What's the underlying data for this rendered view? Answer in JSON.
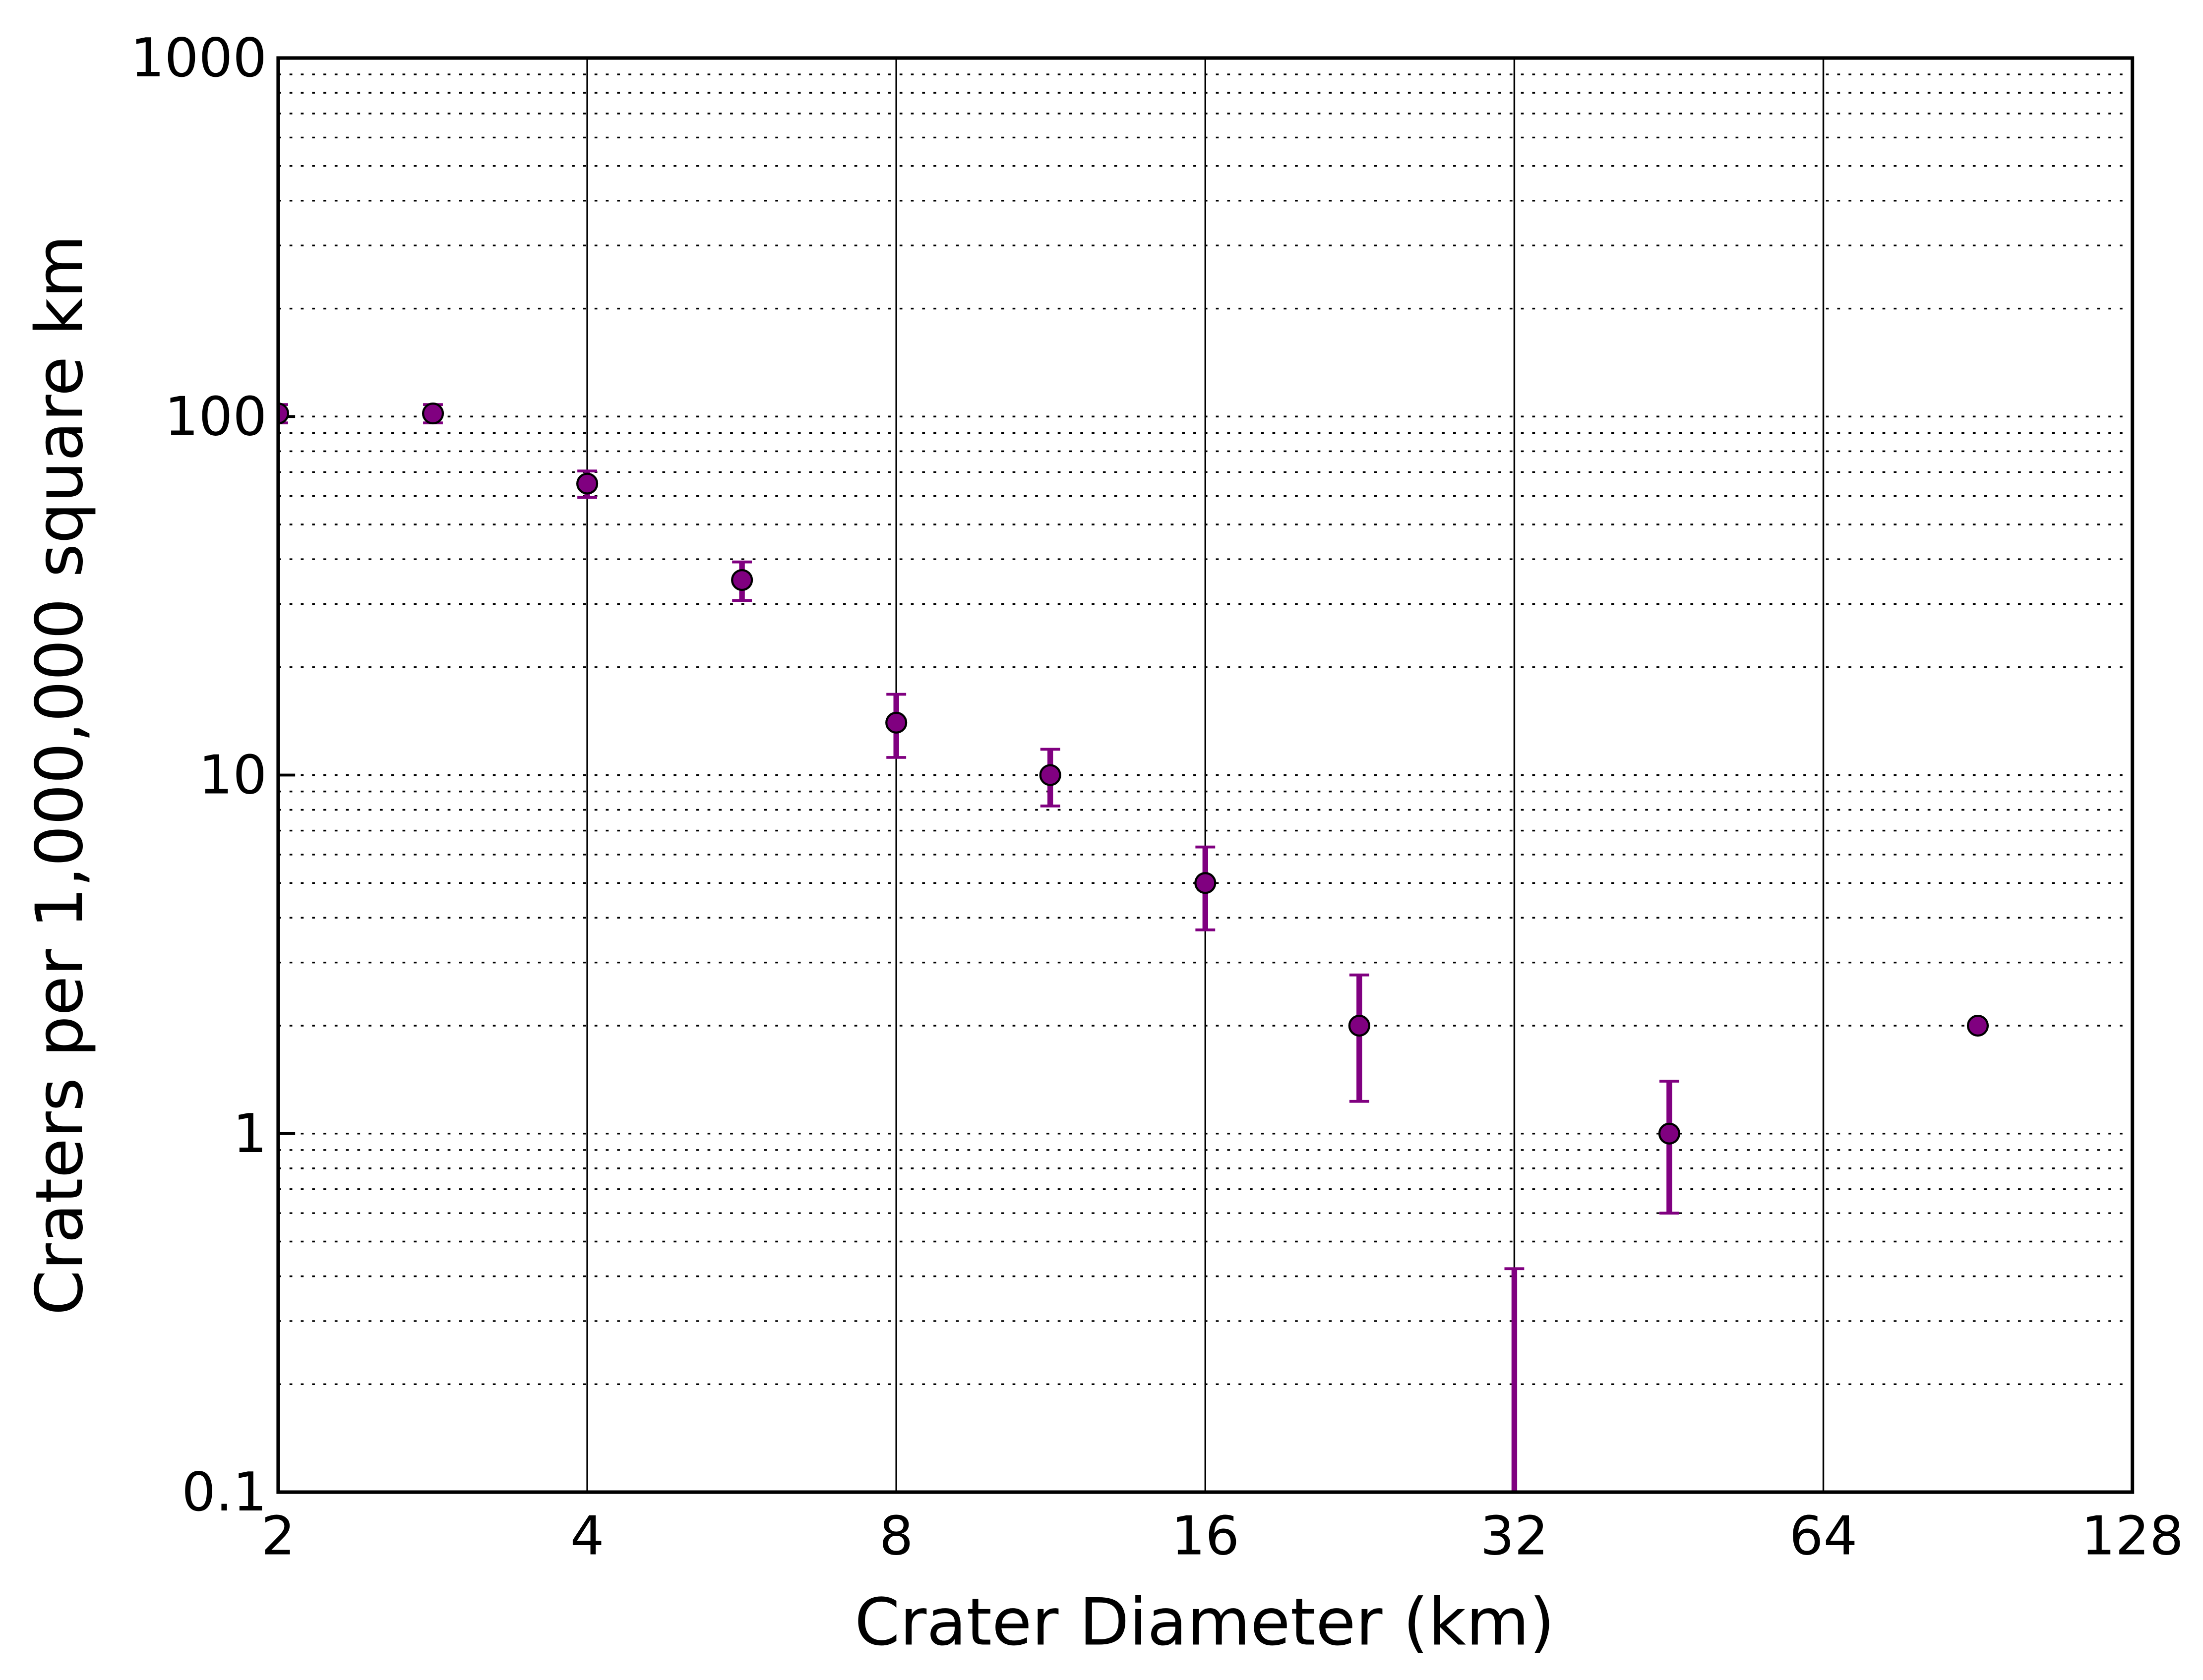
{
  "chart_data": {
    "type": "scatter",
    "xlabel": "Crater Diameter (km)",
    "ylabel": "Craters per 1,000,000 square km",
    "x": [
      2,
      2.83,
      4,
      5.66,
      8,
      11.3,
      16,
      22.6,
      32,
      45.3,
      90.5
    ],
    "series": [
      {
        "color": "#800080",
        "values": [
          102,
          102,
          65,
          35,
          14,
          10,
          5,
          2,
          0,
          1,
          2
        ],
        "errors": [
          6,
          6,
          5.5,
          4.3,
          2.8,
          1.8,
          1.3,
          0.77,
          0.42,
          0.4,
          0
        ]
      }
    ],
    "xscale": "log2",
    "yscale": "log",
    "xlim": [
      2,
      128
    ],
    "xticks": [
      2,
      4,
      8,
      16,
      32,
      64,
      128
    ],
    "ylim": [
      0.1,
      1000
    ],
    "yticks": [
      0.1,
      1,
      10,
      100,
      1000
    ],
    "grid": true,
    "minor_grid": true
  }
}
